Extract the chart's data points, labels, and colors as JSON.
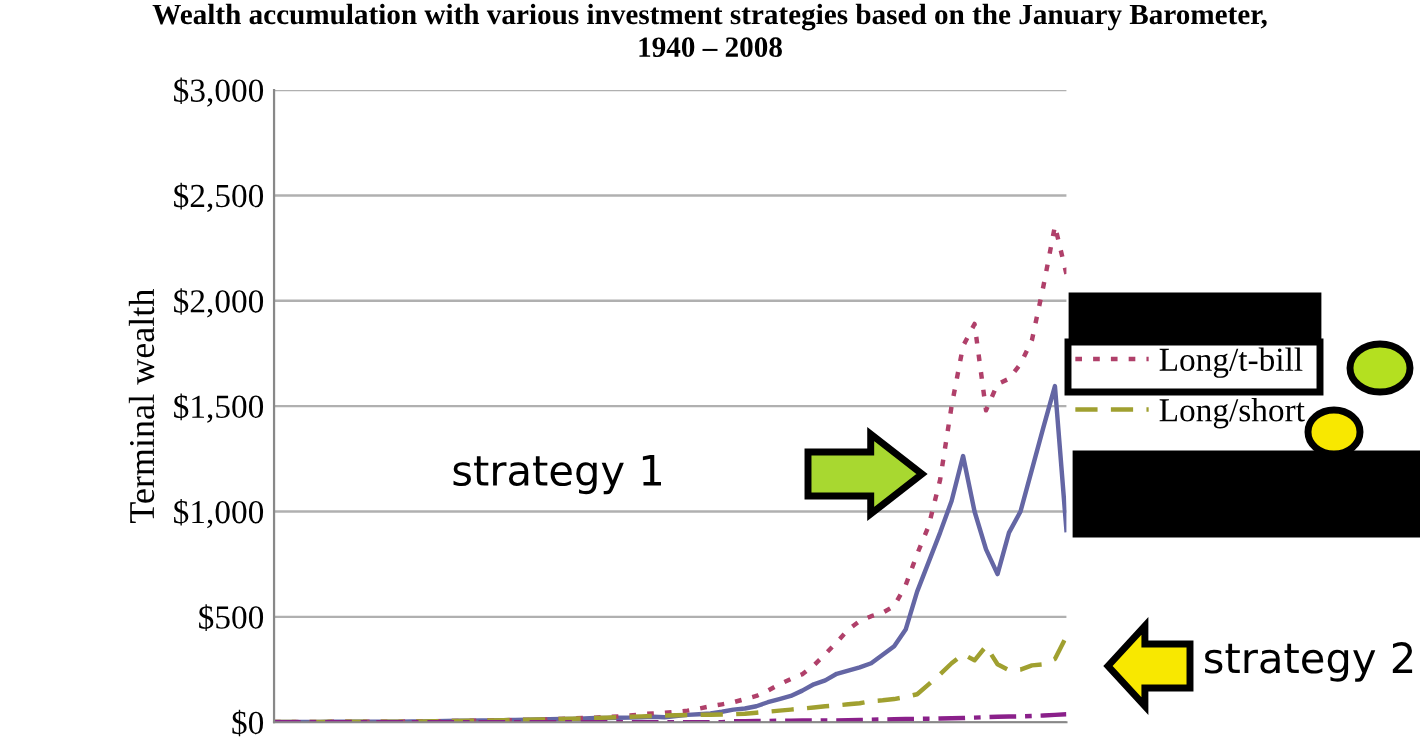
{
  "chart_data": {
    "type": "line",
    "title": "Wealth accumulation with various investment strategies based on the January Barometer,\n1940 – 2008",
    "ylabel": "Terminal wealth",
    "categories": [
      null,
      null,
      null,
      null,
      null,
      null,
      null,
      null,
      null,
      null,
      null,
      null,
      null,
      null,
      null,
      null,
      null,
      null,
      null,
      null,
      null,
      null,
      null,
      null,
      null,
      null,
      null,
      null,
      null,
      null,
      null,
      null,
      null,
      null,
      null,
      null,
      null,
      null,
      null,
      null,
      null,
      null,
      null,
      null,
      null,
      null,
      null,
      null,
      null,
      null,
      null,
      null,
      null,
      null,
      null,
      null,
      null,
      null,
      null,
      null,
      null,
      null,
      null,
      null,
      null,
      null,
      null,
      null,
      null,
      null
    ],
    "ylim": [
      0,
      3000
    ],
    "yticks": [
      {
        "value": 0,
        "label": "$0"
      },
      {
        "value": 500,
        "label": "$500"
      },
      {
        "value": 1000,
        "label": "$1,000"
      },
      {
        "value": 1500,
        "label": "$1,500"
      },
      {
        "value": 2000,
        "label": "$2,000"
      },
      {
        "value": 2500,
        "label": "$2,500"
      },
      {
        "value": 3000,
        "label": "$3,000"
      }
    ],
    "tick_labels": "y",
    "grid": "y",
    "legend": "right",
    "annotations": [
      "strategy 1",
      "strategy 2"
    ],
    "series": [
      {
        "color": "#6466a4",
        "line_style": "solid",
        "values": [
          1,
          1,
          1,
          1,
          1,
          2,
          2,
          2,
          2,
          2,
          3,
          3,
          4,
          4,
          5,
          6,
          7,
          7,
          8,
          9,
          10,
          11,
          12,
          13,
          14,
          15,
          16,
          18,
          20,
          20,
          21,
          22,
          24,
          26,
          24,
          30,
          35,
          38,
          42,
          50,
          60,
          65,
          76,
          95,
          110,
          125,
          150,
          180,
          199,
          230,
          245,
          260,
          280,
          320,
          361,
          440,
          620,
          760,
          900,
          1050,
          1263,
          1000,
          820,
          703,
          900,
          1000,
          1200,
          1400,
          1595,
          912
        ]
      },
      {
        "name": "Long/t-bill",
        "color": "#b0406a",
        "line_style": "dotted",
        "values": [
          1,
          1,
          1,
          1,
          1,
          2,
          2,
          2,
          2,
          3,
          3,
          3,
          4,
          4,
          5,
          5,
          6,
          7,
          8,
          9,
          10,
          10,
          11,
          12,
          14,
          16,
          18,
          20,
          22,
          25,
          28,
          32,
          38,
          42,
          45,
          50,
          55,
          65,
          76,
          85,
          95,
          110,
          125,
          150,
          180,
          205,
          228,
          270,
          323,
          380,
          440,
          480,
          503,
          520,
          551,
          650,
          798,
          931,
          1150,
          1500,
          1785,
          1890,
          1480,
          1605,
          1630,
          1700,
          1814,
          2070,
          2355,
          2127
        ]
      },
      {
        "name": "Long/short",
        "color": "#a0a030",
        "line_style": "dashed",
        "values": [
          1,
          1,
          1,
          1,
          1,
          2,
          2,
          2,
          2,
          3,
          3,
          3,
          4,
          4,
          5,
          5,
          6,
          7,
          8,
          9,
          10,
          11,
          12,
          13,
          14,
          16,
          17,
          18,
          20,
          22,
          24,
          26,
          28,
          30,
          32,
          33,
          34,
          35,
          36,
          37,
          38,
          40,
          45,
          50,
          55,
          60,
          65,
          70,
          76,
          80,
          85,
          90,
          100,
          104,
          110,
          120,
          133,
          180,
          228,
          280,
          323,
          294,
          361,
          275,
          247,
          250,
          270,
          275,
          300,
          408
        ]
      },
      {
        "color": "#8a208a",
        "line_style": "dashdot",
        "values": [
          0,
          0,
          0,
          0,
          0,
          0,
          0,
          0,
          0,
          0,
          0,
          0,
          0,
          0,
          0,
          0,
          0,
          0,
          0,
          0,
          0,
          0,
          0,
          0,
          0,
          0,
          0,
          0,
          0,
          0,
          0,
          0,
          0,
          0,
          0,
          0,
          0,
          0,
          0,
          0,
          5,
          5,
          6,
          6,
          7,
          7,
          8,
          8,
          9,
          9,
          10,
          11,
          12,
          13,
          14,
          15,
          16,
          17,
          18,
          19,
          20,
          22,
          24,
          26,
          27,
          28,
          30,
          32,
          35,
          38
        ]
      }
    ]
  }
}
